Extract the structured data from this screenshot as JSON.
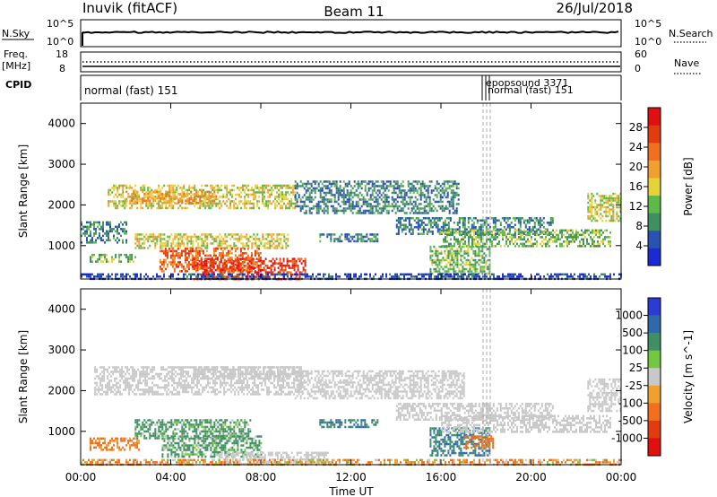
{
  "header": {
    "station": "Inuvik (fitACF)",
    "beam": "Beam 11",
    "date": "26/Jul/2018"
  },
  "noise_panel": {
    "left_label": "N.Sky",
    "right_label": "N.Search",
    "left_ticks": [
      "10^5",
      "10^0"
    ],
    "right_ticks": [
      "10^5",
      "10^0"
    ]
  },
  "freq_panel": {
    "left_label_top": "Freq.",
    "left_label_bottom": "[MHz]",
    "right_label": "Nave",
    "left_ticks": [
      "18",
      "8"
    ],
    "right_ticks": [
      "60",
      "0"
    ]
  },
  "cpid_panel": {
    "label": "CPID",
    "mode_text": "normal (fast) 151",
    "overlap_text_1": "epopsound 3371",
    "overlap_text_2": "normal (fast) 151"
  },
  "x_axis": {
    "label": "Time UT",
    "ticks": [
      "00:00",
      "04:00",
      "08:00",
      "12:00",
      "16:00",
      "20:00",
      "00:00"
    ]
  },
  "colors": {
    "power_scale": [
      "#1a2bd6",
      "#2a52b0",
      "#3f8f62",
      "#5fb84a",
      "#e8d23a",
      "#f0a030",
      "#f07020",
      "#e03c10",
      "#e01010"
    ],
    "velocity_scale": [
      "#2a3cd4",
      "#2f6aa8",
      "#3f8f62",
      "#72c840",
      "#c8c8c8",
      "#f0a030",
      "#f07020",
      "#e03c10",
      "#e01010"
    ]
  },
  "chart_data": [
    {
      "type": "heatmap",
      "panel": "power",
      "ylabel": "Slant Range [km]",
      "ylim": [
        180,
        4500
      ],
      "yticks": [
        "1000",
        "2000",
        "3000",
        "4000"
      ],
      "xlim_hours": [
        0,
        24
      ],
      "colorbar": {
        "label": "Power [dB]",
        "range": [
          0,
          32
        ],
        "ticks": [
          "4",
          "8",
          "12",
          "16",
          "20",
          "24",
          "28"
        ]
      },
      "echo_bands": [
        {
          "t0": 0.0,
          "t1": 2.0,
          "r0": 1100,
          "r1": 1600,
          "v": 8
        },
        {
          "t0": 0.4,
          "t1": 2.4,
          "r0": 600,
          "r1": 800,
          "v": 12
        },
        {
          "t0": 1.2,
          "t1": 9.6,
          "r0": 1900,
          "r1": 2500,
          "v": 16
        },
        {
          "t0": 2.0,
          "t1": 6.0,
          "r0": 2050,
          "r1": 2350,
          "v": 20
        },
        {
          "t0": 2.4,
          "t1": 9.2,
          "r0": 950,
          "r1": 1300,
          "v": 16
        },
        {
          "t0": 3.5,
          "t1": 8.0,
          "r0": 350,
          "r1": 950,
          "v": 24
        },
        {
          "t0": 5.0,
          "t1": 10.0,
          "r0": 190,
          "r1": 700,
          "v": 28
        },
        {
          "t0": 9.5,
          "t1": 16.8,
          "r0": 1800,
          "r1": 2600,
          "v": 8
        },
        {
          "t0": 10.6,
          "t1": 13.2,
          "r0": 1100,
          "r1": 1300,
          "v": 8
        },
        {
          "t0": 14.0,
          "t1": 21.0,
          "r0": 1300,
          "r1": 1700,
          "v": 8
        },
        {
          "t0": 16.0,
          "t1": 23.5,
          "r0": 1000,
          "r1": 1400,
          "v": 12
        },
        {
          "t0": 15.5,
          "t1": 18.2,
          "r0": 300,
          "r1": 1000,
          "v": 12
        },
        {
          "t0": 22.5,
          "t1": 24.0,
          "r0": 1600,
          "r1": 2300,
          "v": 16
        },
        {
          "t0": 0.0,
          "t1": 24.0,
          "r0": 190,
          "r1": 320,
          "v": 4
        }
      ]
    },
    {
      "type": "heatmap",
      "panel": "velocity",
      "ylabel": "Slant Range [km]",
      "ylim": [
        180,
        4500
      ],
      "yticks": [
        "1000",
        "2000",
        "3000",
        "4000"
      ],
      "xlim_hours": [
        0,
        24
      ],
      "colorbar": {
        "label": "Velocity [m s^-1]",
        "ticks": [
          "1000",
          "500",
          "100",
          "25",
          "-25",
          "-100",
          "-500",
          "-1000"
        ]
      },
      "echo_bands": [
        {
          "t0": 0.6,
          "t1": 9.8,
          "r0": 1900,
          "r1": 2600,
          "v": 0
        },
        {
          "t0": 5.0,
          "t1": 9.6,
          "r0": 2300,
          "r1": 2600,
          "v": 0
        },
        {
          "t0": 9.5,
          "t1": 17.0,
          "r0": 1800,
          "r1": 2500,
          "v": 0
        },
        {
          "t0": 14.0,
          "t1": 21.0,
          "r0": 1300,
          "r1": 1700,
          "v": 0
        },
        {
          "t0": 22.5,
          "t1": 24.0,
          "r0": 1500,
          "r1": 2300,
          "v": 0
        },
        {
          "t0": 0.4,
          "t1": 2.6,
          "r0": 550,
          "r1": 850,
          "v": -150
        },
        {
          "t0": 2.4,
          "t1": 7.5,
          "r0": 850,
          "r1": 1300,
          "v": 120
        },
        {
          "t0": 3.6,
          "t1": 8.0,
          "r0": 350,
          "r1": 900,
          "v": 120
        },
        {
          "t0": 6.0,
          "t1": 11.0,
          "r0": 190,
          "r1": 500,
          "v": 0
        },
        {
          "t0": 10.6,
          "t1": 13.2,
          "r0": 1100,
          "r1": 1300,
          "v": 300
        },
        {
          "t0": 15.5,
          "t1": 18.2,
          "r0": 400,
          "r1": 1100,
          "v": 300
        },
        {
          "t0": 17.0,
          "t1": 18.3,
          "r0": 600,
          "r1": 900,
          "v": -300
        },
        {
          "t0": 16.0,
          "t1": 23.5,
          "r0": 1000,
          "r1": 1400,
          "v": 0
        },
        {
          "t0": 0.0,
          "t1": 24.0,
          "r0": 190,
          "r1": 320,
          "v": -80
        }
      ]
    }
  ]
}
